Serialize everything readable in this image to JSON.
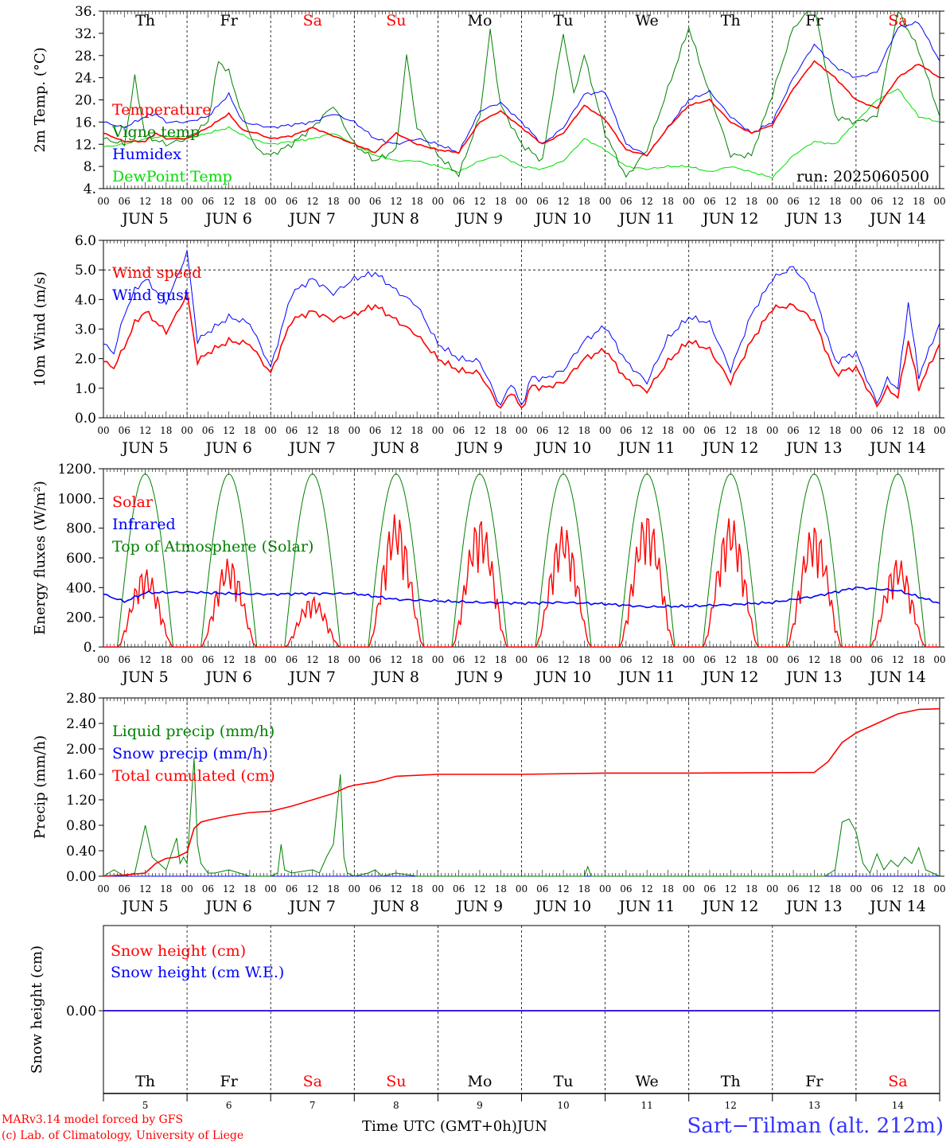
{
  "footer": {
    "credit_line1": "MARv3.14 model forced by GFS",
    "credit_line2": "(c) Lab. of Climatology, University of Liege",
    "xlabel": "Time UTC (GMT+0h)JUN",
    "station": "Sart−Tilman (alt. 212m)"
  },
  "colors": {
    "red": "#ff0000",
    "blue": "#0000ff",
    "green": "#008000",
    "lightgreen": "#00dd00",
    "black": "#000000"
  },
  "chart_data": [
    {
      "id": "temperature",
      "type": "line",
      "ylabel": "2m Temp. (°C)",
      "ylim": [
        4,
        36
      ],
      "yticks": [
        "4.",
        "8.",
        "12.",
        "16.",
        "20.",
        "24.",
        "28.",
        "32.",
        "36."
      ],
      "annotation": "run: 2025060500",
      "x_unit": "hours since 5 JUN 00 UTC",
      "day_names": [
        "Th",
        "Fr",
        "Sa",
        "Su",
        "Mo",
        "Tu",
        "We",
        "Th",
        "Fr",
        "Sa"
      ],
      "weekend_days": [
        2,
        3,
        9
      ],
      "tick_hours": [
        "00",
        "06",
        "12",
        "18"
      ],
      "date_labels": [
        "JUN  5",
        "JUN  6",
        "JUN  7",
        "JUN  8",
        "JUN  9",
        "JUN 10",
        "JUN 11",
        "JUN 12",
        "JUN 13",
        "JUN 14"
      ],
      "series": [
        {
          "name": "Temperature",
          "color": "#ff0000",
          "x": [
            0,
            6,
            12,
            15,
            18,
            24,
            30,
            36,
            40,
            44,
            48,
            54,
            60,
            66,
            72,
            78,
            84,
            90,
            96,
            102,
            108,
            114,
            120,
            126,
            132,
            138,
            144,
            150,
            156,
            162,
            168,
            174,
            180,
            186,
            192,
            198,
            204,
            210,
            216,
            222,
            228,
            234,
            240
          ],
          "y": [
            14,
            12.5,
            12.5,
            14,
            13,
            13,
            15,
            17.5,
            14.5,
            14,
            13,
            13.5,
            15,
            13.5,
            12,
            10.5,
            14,
            12,
            11,
            10.5,
            16,
            18,
            15,
            12,
            14,
            19,
            16.5,
            11,
            10,
            15,
            19,
            20,
            16,
            14,
            15.5,
            22,
            27,
            24,
            20,
            18.5,
            24,
            26.5,
            24
          ]
        },
        {
          "name": "Vigne temp",
          "color": "#008000",
          "x": [
            0,
            6,
            9,
            12,
            18,
            24,
            30,
            33,
            36,
            40,
            44,
            48,
            54,
            60,
            66,
            72,
            78,
            84,
            87,
            90,
            96,
            102,
            108,
            111,
            114,
            120,
            126,
            129,
            132,
            135,
            138,
            144,
            150,
            156,
            162,
            168,
            174,
            180,
            186,
            192,
            198,
            204,
            210,
            216,
            222,
            228,
            234,
            240
          ],
          "y": [
            13,
            12,
            24,
            13.5,
            12,
            13,
            16,
            27,
            25,
            17,
            11,
            10,
            12,
            15,
            19,
            12,
            9,
            11,
            28,
            15,
            10,
            6.5,
            17,
            32.5,
            19,
            12,
            9,
            21,
            32,
            21,
            28,
            14,
            6,
            11,
            22,
            33,
            21,
            10,
            10,
            21,
            33,
            37,
            17,
            16,
            17,
            36,
            29,
            17
          ]
        },
        {
          "name": "Humidex",
          "color": "#0000ff",
          "x": [
            0,
            6,
            12,
            15,
            18,
            24,
            30,
            36,
            40,
            44,
            48,
            54,
            60,
            66,
            72,
            78,
            84,
            90,
            96,
            102,
            108,
            114,
            120,
            126,
            132,
            138,
            144,
            150,
            156,
            162,
            168,
            174,
            180,
            186,
            192,
            198,
            204,
            210,
            216,
            222,
            228,
            234,
            240
          ],
          "y": [
            16,
            15,
            17,
            17.5,
            16,
            16,
            17,
            21,
            16,
            15.5,
            15,
            15.5,
            16,
            17.5,
            16,
            13,
            12,
            13,
            12,
            10.5,
            18,
            19.5,
            16,
            12,
            15,
            21,
            21.5,
            12,
            10,
            15,
            20,
            21.5,
            17,
            14,
            16,
            24,
            30,
            26,
            24,
            25,
            33,
            34,
            27
          ]
        },
        {
          "name": "DewPoint Temp",
          "color": "#00dd00",
          "x": [
            0,
            6,
            12,
            18,
            24,
            30,
            36,
            42,
            48,
            54,
            60,
            66,
            72,
            78,
            84,
            90,
            96,
            102,
            108,
            114,
            120,
            126,
            132,
            138,
            144,
            150,
            156,
            162,
            168,
            174,
            180,
            186,
            192,
            198,
            204,
            210,
            216,
            222,
            228,
            234,
            240
          ],
          "y": [
            11.5,
            12,
            13,
            13.5,
            13,
            14,
            15,
            13,
            12,
            12.5,
            13,
            14,
            12,
            10,
            9,
            9,
            8,
            7,
            9,
            10,
            8,
            7.5,
            9,
            13,
            11,
            8,
            7.5,
            8,
            8,
            7,
            8,
            7,
            6,
            10,
            12.5,
            12,
            16,
            20,
            22,
            17,
            16
          ]
        }
      ]
    },
    {
      "id": "wind",
      "type": "line",
      "ylabel": "10m Wind (m/s)",
      "ylim": [
        0,
        6
      ],
      "yticks": [
        "0.0",
        "1.0",
        "2.0",
        "3.0",
        "4.0",
        "5.0",
        "6.0"
      ],
      "ref_line": 5.0,
      "tick_hours": [
        "00",
        "06",
        "12",
        "18"
      ],
      "date_labels": [
        "JUN  5",
        "JUN  6",
        "JUN  7",
        "JUN  8",
        "JUN  9",
        "JUN 10",
        "JUN 11",
        "JUN 12",
        "JUN 13",
        "JUN 14"
      ],
      "series": [
        {
          "name": "Wind speed",
          "color": "#ff0000",
          "x": [
            0,
            3,
            6,
            9,
            12,
            18,
            21,
            24,
            27,
            30,
            36,
            42,
            48,
            54,
            60,
            66,
            72,
            78,
            84,
            90,
            96,
            102,
            108,
            114,
            117,
            120,
            123,
            126,
            132,
            138,
            144,
            150,
            156,
            162,
            168,
            174,
            180,
            186,
            192,
            198,
            204,
            210,
            216,
            222,
            225,
            228,
            231,
            234,
            240
          ],
          "y": [
            1.9,
            1.7,
            2.4,
            3.2,
            3.6,
            2.9,
            3.5,
            4.2,
            1.9,
            2.2,
            2.6,
            2.5,
            1.5,
            3.3,
            3.6,
            3.3,
            3.5,
            3.8,
            3.3,
            2.8,
            2.0,
            1.6,
            1.5,
            0.3,
            0.9,
            0.3,
            1.1,
            1.0,
            1.2,
            2.0,
            2.3,
            1.3,
            0.9,
            1.9,
            2.6,
            2.3,
            1.2,
            2.6,
            3.7,
            3.8,
            3.3,
            1.5,
            1.7,
            0.4,
            1.0,
            0.7,
            2.6,
            1.0,
            2.5
          ]
        },
        {
          "name": "Wind gust",
          "color": "#0000ff",
          "x": [
            0,
            3,
            6,
            9,
            12,
            18,
            21,
            24,
            27,
            30,
            36,
            42,
            48,
            54,
            60,
            66,
            72,
            78,
            84,
            90,
            96,
            102,
            108,
            114,
            117,
            120,
            123,
            126,
            132,
            138,
            144,
            150,
            156,
            162,
            168,
            174,
            180,
            186,
            192,
            198,
            204,
            210,
            216,
            222,
            225,
            228,
            231,
            234,
            240
          ],
          "y": [
            2.5,
            2.2,
            3.5,
            4.3,
            4.7,
            3.9,
            4.7,
            5.6,
            2.6,
            2.9,
            3.4,
            3.2,
            1.7,
            4.2,
            4.7,
            4.2,
            4.7,
            4.9,
            4.3,
            3.8,
            2.5,
            2.0,
            1.9,
            0.4,
            1.2,
            0.4,
            1.4,
            1.3,
            1.6,
            2.6,
            3.1,
            1.9,
            1.2,
            2.7,
            3.4,
            3.2,
            1.6,
            3.5,
            4.7,
            5.1,
            4.2,
            1.9,
            2.2,
            0.5,
            1.3,
            1.0,
            3.9,
            1.4,
            3.2
          ]
        }
      ]
    },
    {
      "id": "energy",
      "type": "line",
      "ylabel": "Energy fluxes (W/m²)",
      "ylim": [
        0,
        1200
      ],
      "yticks": [
        "0.",
        "200.",
        "400.",
        "600.",
        "800.",
        "1000.",
        "1200."
      ],
      "tick_hours": [
        "00",
        "06",
        "12",
        "18"
      ],
      "date_labels": [
        "JUN  5",
        "JUN  6",
        "JUN  7",
        "JUN  8",
        "JUN  9",
        "JUN 10",
        "JUN 11",
        "JUN 12",
        "JUN 13",
        "JUN 14"
      ],
      "toa_peak": 1165,
      "solar_peaks": [
        530,
        600,
        340,
        900,
        880,
        820,
        910,
        880,
        830,
        600
      ],
      "series": [
        {
          "name": "Solar",
          "color": "#ff0000"
        },
        {
          "name": "Infrared",
          "color": "#0000ff",
          "x": [
            0,
            6,
            12,
            24,
            36,
            48,
            60,
            72,
            84,
            96,
            108,
            120,
            132,
            144,
            156,
            168,
            180,
            192,
            204,
            216,
            228,
            240
          ],
          "y": [
            355,
            305,
            365,
            370,
            360,
            355,
            360,
            360,
            320,
            310,
            300,
            295,
            300,
            290,
            270,
            275,
            285,
            300,
            340,
            400,
            380,
            295
          ]
        },
        {
          "name": "Top of Atmosphere (Solar)",
          "color": "#008000"
        }
      ]
    },
    {
      "id": "precip",
      "type": "line",
      "ylabel": "Precip (mm/h)",
      "ylim": [
        0,
        2.8
      ],
      "yticks": [
        "0.00",
        "0.40",
        "0.80",
        "1.20",
        "1.60",
        "2.00",
        "2.40",
        "2.80"
      ],
      "tick_hours": [
        "00",
        "06",
        "12",
        "18"
      ],
      "date_labels": [
        "JUN  5",
        "JUN  6",
        "JUN  7",
        "JUN  8",
        "JUN  9",
        "JUN 10",
        "JUN 11",
        "JUN 12",
        "JUN 13",
        "JUN 14"
      ],
      "series": [
        {
          "name": "Liquid precip (mm/h)",
          "color": "#008000",
          "x": [
            0,
            3,
            6,
            9,
            12,
            14,
            16,
            18,
            21,
            22,
            23,
            24,
            26,
            27,
            28,
            30,
            32,
            36,
            39,
            42,
            48,
            50,
            51,
            52,
            54,
            60,
            62,
            64,
            66,
            68,
            69,
            70,
            72,
            76,
            78,
            80,
            84,
            90,
            96,
            138,
            139,
            140,
            168,
            189,
            192,
            204,
            207,
            210,
            212,
            214,
            216,
            218,
            220,
            222,
            224,
            226,
            228,
            230,
            232,
            234,
            236,
            240
          ],
          "y": [
            0,
            0.1,
            0,
            0.05,
            0.8,
            0.3,
            0.2,
            0.1,
            0.6,
            0.2,
            0.3,
            0.2,
            1.85,
            0.5,
            0.2,
            0.05,
            0.05,
            0.1,
            0.05,
            0,
            0,
            0.05,
            0.5,
            0.1,
            0.05,
            0.1,
            0.05,
            0.3,
            0.5,
            1.6,
            0.3,
            0.05,
            0,
            0.05,
            0.1,
            0,
            0.05,
            0,
            0,
            0,
            0.15,
            0,
            0,
            0,
            0,
            0,
            0,
            0.1,
            0.85,
            0.9,
            0.7,
            0.2,
            0.05,
            0.35,
            0.1,
            0.25,
            0.15,
            0.3,
            0.2,
            0.45,
            0.1,
            0
          ]
        },
        {
          "name": "Snow precip (mm/h)",
          "color": "#0000ff",
          "x": [
            0,
            240
          ],
          "y": [
            0,
            0
          ]
        },
        {
          "name": "Total cumulated (cm)",
          "color": "#ff0000",
          "x": [
            0,
            6,
            12,
            15,
            18,
            21,
            24,
            26,
            28,
            30,
            36,
            42,
            48,
            54,
            60,
            66,
            70,
            72,
            78,
            84,
            96,
            120,
            144,
            168,
            204,
            208,
            212,
            216,
            222,
            228,
            234,
            240
          ],
          "y": [
            0,
            0.02,
            0.05,
            0.2,
            0.28,
            0.3,
            0.38,
            0.75,
            0.85,
            0.88,
            0.95,
            1.0,
            1.02,
            1.1,
            1.2,
            1.3,
            1.4,
            1.43,
            1.48,
            1.57,
            1.6,
            1.6,
            1.62,
            1.62,
            1.63,
            1.8,
            2.1,
            2.25,
            2.4,
            2.55,
            2.62,
            2.63
          ]
        }
      ]
    },
    {
      "id": "snow",
      "type": "line",
      "ylabel": "Snow height (cm)",
      "yticks": [
        "0.00"
      ],
      "day_names": [
        "Th",
        "Fr",
        "Sa",
        "Su",
        "Mo",
        "Tu",
        "We",
        "Th",
        "Fr",
        "Sa"
      ],
      "day_numbers": [
        "5",
        "6",
        "7",
        "8",
        "9",
        "10",
        "11",
        "12",
        "13",
        "14"
      ],
      "series": [
        {
          "name": "Snow height (cm)",
          "color": "#ff0000",
          "x": [
            0,
            240
          ],
          "y": [
            0,
            0
          ]
        },
        {
          "name": "Snow height (cm W.E.)",
          "color": "#0000ff",
          "x": [
            0,
            240
          ],
          "y": [
            0,
            0
          ]
        }
      ]
    }
  ]
}
